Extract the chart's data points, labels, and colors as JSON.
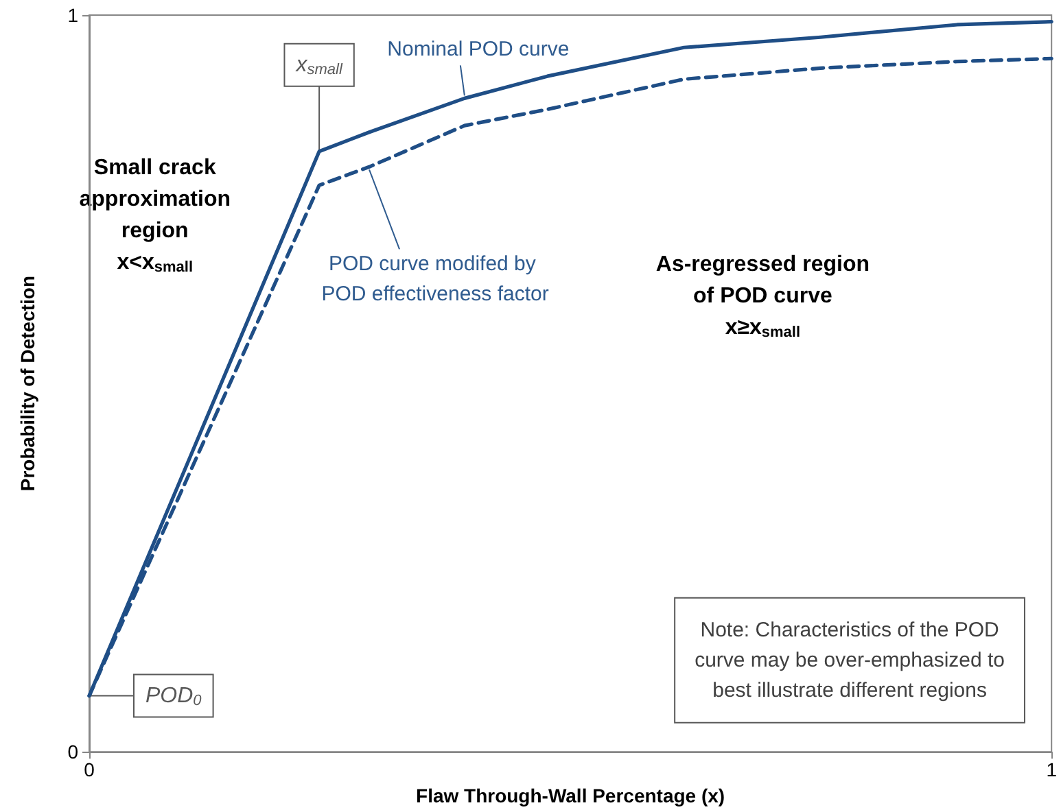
{
  "chart_data": {
    "type": "line",
    "xlabel": "Flaw Through-Wall Percentage (x)",
    "ylabel": "Probability of Detection",
    "xlim": [
      0,
      1
    ],
    "ylim": [
      0,
      1
    ],
    "xticks": [
      0,
      1
    ],
    "yticks": [
      0,
      1
    ],
    "legend": false,
    "marker": "none",
    "series": [
      {
        "name": "Nominal POD curve",
        "color": "#1f4e86",
        "line_style": "solid",
        "x": [
          0,
          0.239,
          0.291,
          0.39,
          0.476,
          0.618,
          0.76,
          0.902,
          1
        ],
        "values": [
          0.076,
          0.815,
          0.841,
          0.887,
          0.917,
          0.956,
          0.97,
          0.987,
          0.991
        ]
      },
      {
        "name": "POD curve modifed by POD effectiveness factor",
        "color": "#1f4e86",
        "line_style": "dashed",
        "x": [
          0,
          0.239,
          0.291,
          0.39,
          0.476,
          0.618,
          0.76,
          0.902,
          1
        ],
        "values": [
          0.076,
          0.769,
          0.794,
          0.85,
          0.872,
          0.913,
          0.928,
          0.937,
          0.941
        ]
      }
    ],
    "annotations": [
      {
        "text": "x$_{small}$",
        "x": 0.239,
        "y": 0.815
      },
      {
        "text": "POD$_{0}$",
        "x": 0,
        "y": 0.076
      },
      "Small crack\napproximation\nregion\nx<x$_{small}$",
      "As-regressed region\nof POD curve\nx≥x$_{small}$",
      "Note: Characteristics of the POD\ncurve may be over-emphasized to\nbest illustrate different regions"
    ]
  }
}
